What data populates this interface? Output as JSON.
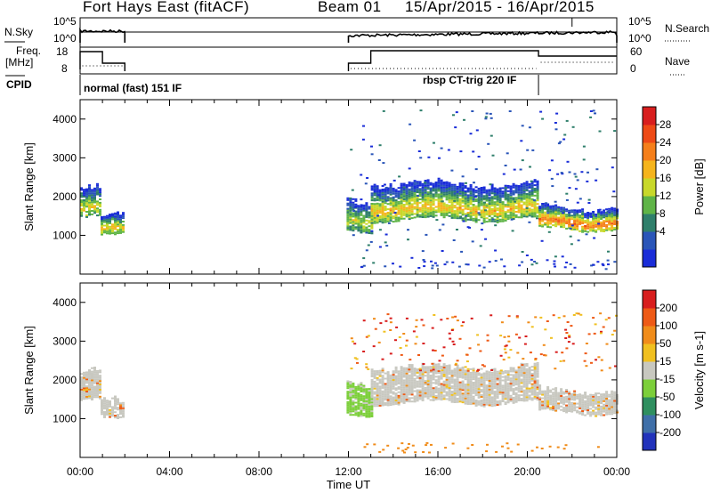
{
  "header": {
    "station": "Fort Hays East (fitACF)",
    "beam": "Beam 01",
    "date_range": "15/Apr/2015 - 16/Apr/2015"
  },
  "top_panels": {
    "nsky_label": "N.Sky",
    "nsky_ticks": [
      "10^5",
      "10^0"
    ],
    "nsearch_label": "N.Search",
    "nsearch_ticks": [
      "10^5",
      "10^0"
    ],
    "freq_label_line1": "Freq.",
    "freq_label_line2": "[MHz]",
    "freq_ticks": [
      "18",
      "8"
    ],
    "nave_label": "Nave",
    "nave_ticks": [
      "60",
      "0"
    ],
    "cpid_label": "CPID",
    "cpid_left": "normal (fast) 151 IF",
    "cpid_right": "rbsp CT-trig 220 IF"
  },
  "chart_data": [
    {
      "type": "heatmap",
      "title": "Power",
      "ylabel": "Slant Range [km]",
      "ylim": [
        0,
        4500
      ],
      "yticks": [
        "1000",
        "2000",
        "3000",
        "4000"
      ],
      "xlim": [
        "00:00",
        "24:00"
      ],
      "colorbar_label": "Power [dB]",
      "colorbar_ticks": [
        "28",
        "24",
        "20",
        "16",
        "12",
        "8",
        "4"
      ],
      "colors": [
        "#1a2dd8",
        "#2a55b8",
        "#2f7f6b",
        "#5fb447",
        "#c8d82a",
        "#f5b41c",
        "#f57f1a",
        "#ee4a16",
        "#d81e1e"
      ],
      "echo_bands": [
        {
          "start": "00:00",
          "end": "00:55",
          "range_low": 1450,
          "range_high": 2200,
          "peak_db": 18
        },
        {
          "start": "00:55",
          "end": "01:55",
          "range_low": 950,
          "range_high": 1450,
          "peak_db": 20
        },
        {
          "start": "11:55",
          "end": "13:00",
          "range_low": 1100,
          "range_high": 1900,
          "peak_db": 16
        },
        {
          "start": "13:00",
          "end": "20:30",
          "range_low": 1400,
          "range_high": 2300,
          "peak_db": 20
        },
        {
          "start": "20:30",
          "end": "24:00",
          "range_low": 1150,
          "range_high": 1700,
          "peak_db": 26
        }
      ]
    },
    {
      "type": "heatmap",
      "title": "Velocity",
      "ylabel": "Slant Range [km]",
      "xlabel": "Time UT",
      "ylim": [
        0,
        4500
      ],
      "yticks": [
        "1000",
        "2000",
        "3000",
        "4000"
      ],
      "xticks": [
        "00:00",
        "04:00",
        "08:00",
        "12:00",
        "16:00",
        "20:00",
        "00:00"
      ],
      "xlim": [
        "00:00",
        "24:00"
      ],
      "colorbar_label": "Velocity [m s-1]",
      "colorbar_ticks": [
        "200",
        "100",
        "50",
        "15",
        "-15",
        "-50",
        "-100",
        "-200"
      ],
      "colors": [
        "#2233bb",
        "#3f6fa8",
        "#2f8f5f",
        "#7ccf3a",
        "#c8c8c0",
        "#f0c020",
        "#f08c1a",
        "#ee5a16",
        "#d81e1e"
      ]
    }
  ]
}
